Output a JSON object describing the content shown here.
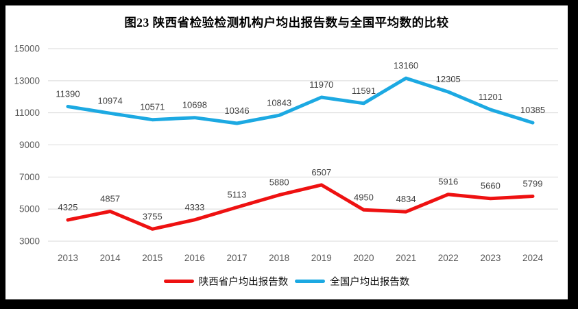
{
  "chart_data": {
    "type": "line",
    "title": "图23 陕西省检验检测机构户均出报告数与全国平均数的比较",
    "categories": [
      "2013",
      "2014",
      "2015",
      "2016",
      "2017",
      "2018",
      "2019",
      "2020",
      "2021",
      "2022",
      "2023",
      "2024"
    ],
    "series": [
      {
        "name": "陕西省户均出报告数",
        "color": "#EE1111",
        "values": [
          4325,
          4857,
          3755,
          4333,
          5113,
          5880,
          6507,
          4950,
          4834,
          5916,
          5660,
          5799
        ]
      },
      {
        "name": "全国户均出报告数",
        "color": "#1CA9E2",
        "values": [
          11390,
          10974,
          10571,
          10698,
          10346,
          10843,
          11970,
          11591,
          13160,
          12305,
          11201,
          10385
        ]
      }
    ],
    "y_axis": {
      "min": 3000,
      "max": 15000,
      "ticks": [
        15000,
        13000,
        11000,
        9000,
        7000,
        5000,
        3000
      ]
    },
    "grid": true,
    "legend_position": "bottom",
    "data_labels": true,
    "styles": {
      "background": "#FFFFFF",
      "frame_border": "#000000",
      "grid_color": "#D9D9D9",
      "axis_label_color": "#595959",
      "data_label_color": "#3F3F3F"
    }
  }
}
